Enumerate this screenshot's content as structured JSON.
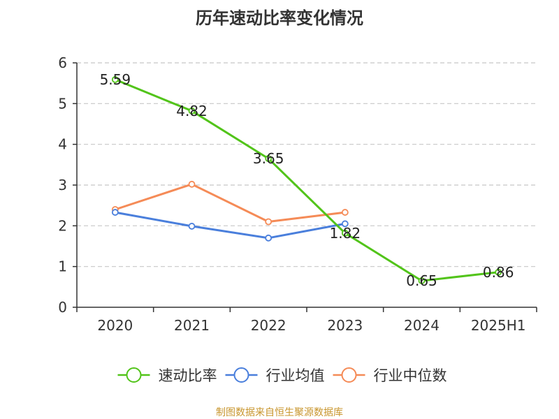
{
  "chart_data": {
    "type": "line",
    "title": "历年速动比率变化情况",
    "categories": [
      "2020",
      "2021",
      "2022",
      "2023",
      "2024",
      "2025H1"
    ],
    "ylim": [
      0,
      6
    ],
    "yticks": [
      "0",
      "1",
      "2",
      "3",
      "4",
      "5",
      "6"
    ],
    "grid": true,
    "legend_position": "bottom",
    "series": [
      {
        "name": "速动比率",
        "color": "#52c41a",
        "values": [
          5.59,
          4.82,
          3.65,
          1.82,
          0.65,
          0.86
        ],
        "data_labels": [
          "5.59",
          "4.82",
          "3.65",
          "1.82",
          "0.65",
          "0.86"
        ]
      },
      {
        "name": "行业均值",
        "color": "#4a7fdc",
        "values": [
          2.33,
          1.99,
          1.7,
          2.05,
          null,
          null
        ]
      },
      {
        "name": "行业中位数",
        "color": "#f58b57",
        "values": [
          2.4,
          3.02,
          2.1,
          2.33,
          null,
          null
        ]
      }
    ]
  },
  "source_note": "制图数据来自恒生聚源数据库"
}
